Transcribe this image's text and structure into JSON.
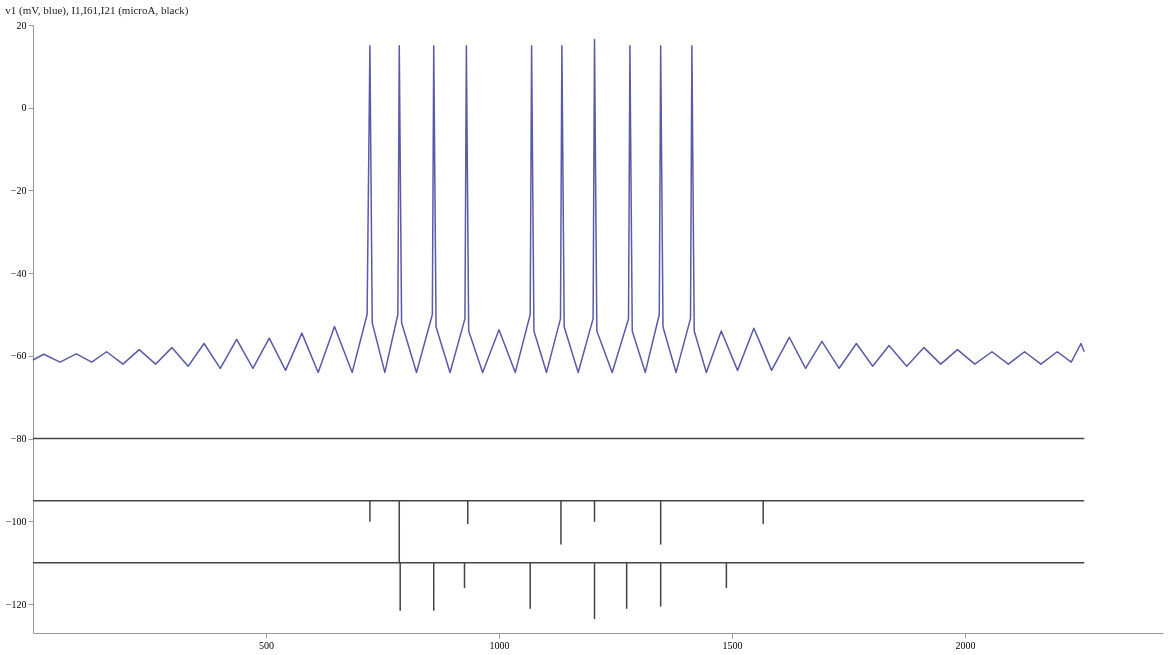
{
  "chart_data": {
    "type": "line",
    "title": "v1 (mV, blue), I1,I61,I21 (microA, black)",
    "xlim": [
      0,
      2425
    ],
    "xticks": [
      500,
      1000,
      1500,
      2000
    ],
    "ylim": [
      -127,
      20
    ],
    "yticks": [
      20,
      0,
      -20,
      -40,
      -60,
      -80,
      -100,
      -120
    ],
    "grid": false,
    "legend": false,
    "marker": "none",
    "line_style": "solid",
    "series": [
      {
        "color": "#5a5aa8",
        "x": [
          0,
          23,
          58,
          93,
          126,
          158,
          193,
          228,
          263,
          298,
          333,
          367,
          402,
          437,
          472,
          507,
          542,
          577,
          612,
          647,
          685,
          717,
          723,
          728,
          755,
          783,
          786,
          791,
          823,
          857,
          860,
          865,
          895,
          927,
          930,
          935,
          965,
          1000,
          1035,
          1067,
          1070,
          1075,
          1102,
          1132,
          1135,
          1140,
          1170,
          1202,
          1205,
          1210,
          1243,
          1278,
          1281,
          1286,
          1314,
          1344,
          1347,
          1352,
          1380,
          1411,
          1414,
          1419,
          1445,
          1477,
          1512,
          1547,
          1585,
          1623,
          1658,
          1693,
          1730,
          1767,
          1802,
          1837,
          1875,
          1912,
          1948,
          1984,
          2021,
          2058,
          2093,
          2128,
          2163,
          2198,
          2228,
          2249,
          2256
        ],
        "values": [
          -61,
          -59.6,
          -61.5,
          -59.5,
          -61.5,
          -59,
          -62,
          -58.5,
          -62,
          -58,
          -62.5,
          -57,
          -63,
          -56,
          -63,
          -55.7,
          -63.5,
          -54.5,
          -64,
          -52.9,
          -64,
          -50,
          15,
          -52,
          -64,
          -50,
          15,
          -52,
          -64,
          -50,
          15,
          -53,
          -64,
          -51,
          15,
          -54,
          -64,
          -53.7,
          -64,
          -50,
          15,
          -54,
          -64,
          -51,
          15,
          -53,
          -64,
          -51,
          16.5,
          -54,
          -64,
          -51,
          15,
          -54,
          -64,
          -50,
          15,
          -53,
          -64,
          -51,
          15,
          -54,
          -64,
          -54,
          -63.5,
          -53.3,
          -63.5,
          -55.5,
          -63,
          -56.5,
          -63,
          -57,
          -62.5,
          -57.5,
          -62.5,
          -58,
          -62,
          -58.5,
          -62,
          -59,
          -62,
          -59,
          -62,
          -59,
          -61.5,
          -57,
          -59
        ]
      },
      {
        "color": "#444444",
        "x": [
          0,
          2256
        ],
        "values": [
          -80,
          -80
        ]
      },
      {
        "color": "#444444",
        "x": [
          0,
          723,
          723,
          723,
          786,
          786,
          786,
          933,
          933,
          933,
          1133,
          1133,
          1133,
          1205,
          1205,
          1205,
          1347,
          1347,
          1347,
          1567,
          1567,
          1567,
          2256
        ],
        "values": [
          -95,
          -95,
          -100,
          -95,
          -95,
          -110,
          -95,
          -95,
          -100.5,
          -95,
          -95,
          -105.5,
          -95,
          -95,
          -100,
          -95,
          -95,
          -105.5,
          -95,
          -95,
          -100.5,
          -95,
          -95
        ]
      },
      {
        "color": "#444444",
        "x": [
          0,
          788,
          788,
          788,
          860,
          860,
          860,
          926,
          926,
          926,
          1067,
          1067,
          1067,
          1205,
          1205,
          1205,
          1274,
          1274,
          1274,
          1347,
          1347,
          1347,
          1488,
          1488,
          1488,
          2256
        ],
        "values": [
          -110,
          -110,
          -121.5,
          -110,
          -110,
          -121.5,
          -110,
          -110,
          -116,
          -110,
          -110,
          -121,
          -110,
          -110,
          -123.5,
          -110,
          -110,
          -121,
          -110,
          -110,
          -120.5,
          -110,
          -110,
          -116,
          -110,
          -110
        ]
      }
    ]
  }
}
